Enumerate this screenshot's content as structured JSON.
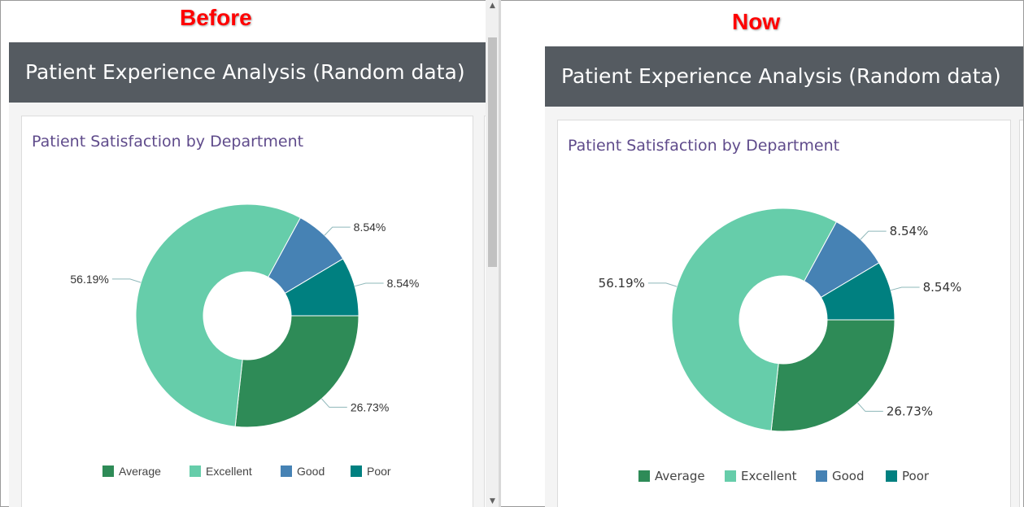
{
  "colors": {
    "Average": "#2e8b57",
    "Excellent": "#66cdaa",
    "Good": "#4682b4",
    "Poor": "#008080",
    "header_bg": "#555b61",
    "title_text": "#5f4b8b",
    "label_red": "#ff0000"
  },
  "panels": {
    "before": {
      "label": "Before",
      "header": "Patient Experience Analysis (Random data)",
      "card_title": "Patient Satisfaction by Department"
    },
    "now": {
      "label": "Now",
      "header": "Patient Experience Analysis (Random data)",
      "card_title": "Patient Satisfaction by Department"
    }
  },
  "scrollbar": {
    "up_icon": "scroll-up-arrow-icon",
    "down_icon": "scroll-down-arrow-icon"
  },
  "chart_data": [
    {
      "type": "pie",
      "variant": "donut",
      "panel": "before",
      "title": "Patient Satisfaction by Department",
      "categories": [
        "Average",
        "Excellent",
        "Good",
        "Poor"
      ],
      "values": [
        26.73,
        56.19,
        8.54,
        8.54
      ],
      "labels": [
        "26.73%",
        "56.19%",
        "8.54%",
        "8.54%"
      ],
      "legend_position": "bottom"
    },
    {
      "type": "pie",
      "variant": "donut",
      "panel": "now",
      "title": "Patient Satisfaction by Department",
      "categories": [
        "Average",
        "Excellent",
        "Good",
        "Poor"
      ],
      "values": [
        26.73,
        56.19,
        8.54,
        8.54
      ],
      "labels": [
        "26.73%",
        "56.19%",
        "8.54%",
        "8.54%"
      ],
      "legend_position": "bottom"
    }
  ]
}
